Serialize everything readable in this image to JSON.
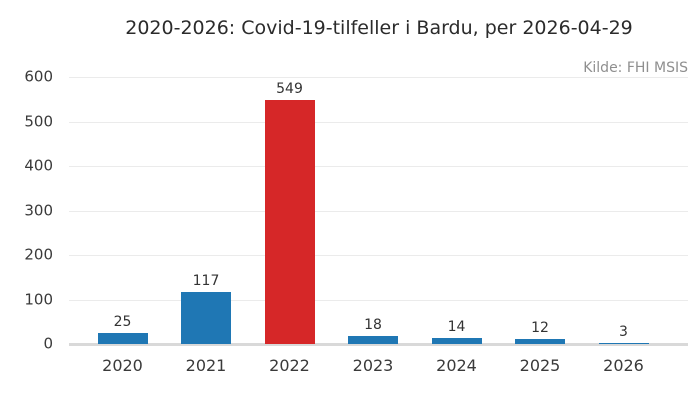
{
  "chart_data": {
    "type": "bar",
    "title": "2020-2026: Covid-19-tilfeller i Bardu, per 2026-04-29",
    "source_annotation": "Kilde: FHI MSIS",
    "categories": [
      "2020",
      "2021",
      "2022",
      "2023",
      "2024",
      "2025",
      "2026"
    ],
    "values": [
      25,
      117,
      549,
      18,
      14,
      12,
      3
    ],
    "value_labels": [
      "25",
      "117",
      "549",
      "18",
      "14",
      "12",
      "3"
    ],
    "bar_colors": [
      "#1f77b4",
      "#1f77b4",
      "#d62728",
      "#1f77b4",
      "#1f77b4",
      "#1f77b4",
      "#1f77b4"
    ],
    "highlight_color": "#d62728",
    "default_bar_color": "#1f77b4",
    "xlabel": "",
    "ylabel": "",
    "ylim": [
      0,
      600
    ],
    "yticks": [
      0,
      100,
      200,
      300,
      400,
      500,
      600
    ],
    "grid": "horizontal",
    "legend": "none",
    "background_color": "#ffffff",
    "gridline_color": "#ebebeb",
    "axis_line_color": "#d9d9d9",
    "text_color": "#3a3a3a",
    "source_text_color": "#8f8f8f"
  }
}
